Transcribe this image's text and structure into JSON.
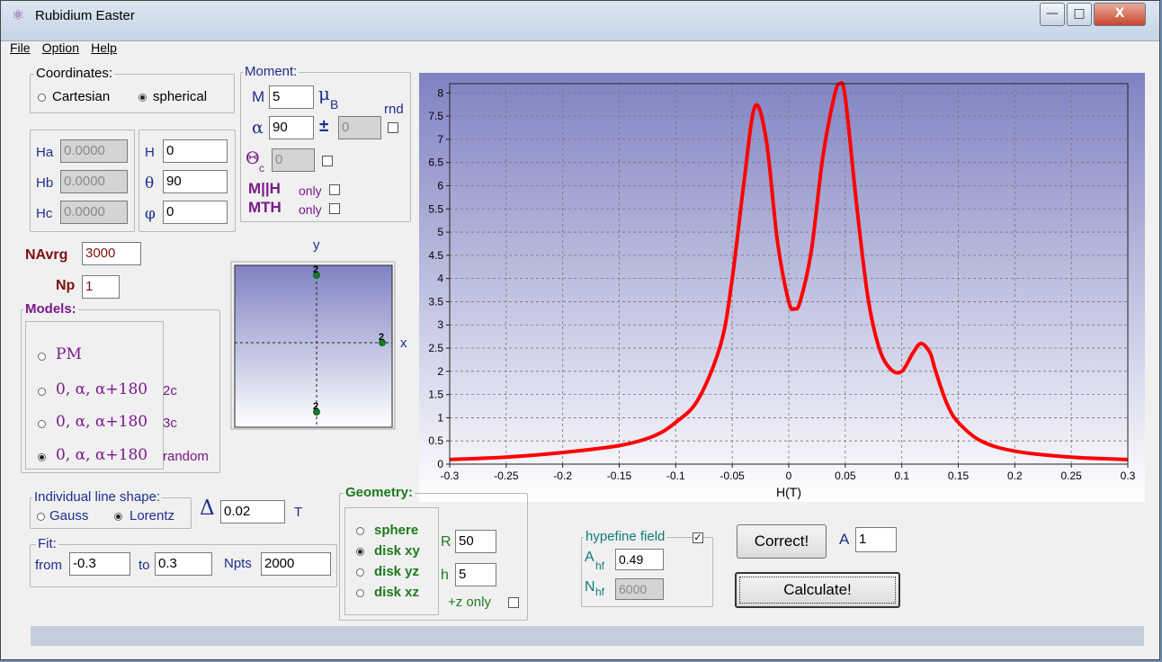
{
  "window": {
    "title": "Rubidium Easter",
    "min": "—",
    "max": "□",
    "close": "X"
  },
  "menu": [
    "File",
    "Option",
    "Help"
  ],
  "coordinates": {
    "title": "Coordinates:",
    "cartesian": "Cartesian",
    "spherical": "spherical",
    "selected": "spherical"
  },
  "cartesian_fields": {
    "ha_label": "Ha",
    "ha": "0.0000",
    "hb_label": "Hb",
    "hb": "0.0000",
    "hc_label": "Hc",
    "hc": "0.0000"
  },
  "spherical_fields": {
    "h_label": "H",
    "h": "0",
    "theta_label": "θ",
    "theta": "90",
    "phi_label": "φ",
    "phi": "0"
  },
  "moment": {
    "title": "Moment:",
    "m_label": "M",
    "m": "5",
    "mu": "μ",
    "mu_sub": "B",
    "alpha_label": "α",
    "alpha": "90",
    "pm": "±",
    "pm_value": "0",
    "rnd": "rnd",
    "theta_c": "Θ",
    "theta_c_sub": "c",
    "theta_c_value": "0",
    "mh_bold": "M||H",
    "mh_only": "only",
    "mt_bold": "MTH",
    "mt_only": "only"
  },
  "navrg": {
    "label": "NAvrg",
    "value": "3000"
  },
  "np": {
    "label": "Np",
    "value": "1"
  },
  "models": {
    "title": "Models:",
    "items": [
      {
        "main": "PM",
        "suffix": "",
        "selected": false
      },
      {
        "main": "0, α, α+180",
        "suffix": "2c",
        "selected": false
      },
      {
        "main": "0, α, α+180",
        "suffix": "3c",
        "selected": false
      },
      {
        "main": "0, α, α+180",
        "suffix": "random",
        "selected": true
      }
    ]
  },
  "xy_plot": {
    "y_label": "y",
    "x_label": "x",
    "marker": "2"
  },
  "line_shape": {
    "title": "Individual line shape:",
    "gauss": "Gauss",
    "lorentz": "Lorentz",
    "selected": "Lorentz",
    "delta": "Δ",
    "delta_value": "0.02",
    "unit": "T"
  },
  "fit": {
    "title": "Fit:",
    "from_label": "from",
    "from": "-0.3",
    "to_label": "to",
    "to": "0.3",
    "npts_label": "Npts",
    "npts": "2000"
  },
  "geometry": {
    "title": "Geometry:",
    "options": [
      "sphere",
      "disk xy",
      "disk yz",
      "disk xz"
    ],
    "selected": "disk xy",
    "r_label": "R",
    "r": "50",
    "h_label": "h",
    "h": "5",
    "zonly": "+z only"
  },
  "hyperfine": {
    "title": "hypefine field",
    "checked": true,
    "ahf_label": "A",
    "ahf_sub": "hf",
    "ahf": "0.49",
    "nhf_label": "N",
    "nhf_sub": "hf",
    "nhf": "6000"
  },
  "buttons": {
    "correct": "Correct!",
    "a_label": "A",
    "a_value": "1",
    "calculate": "Calculate!"
  },
  "chart_data": {
    "type": "line",
    "xlabel": "H(T)",
    "ylabel": "",
    "xlim": [
      -0.3,
      0.3
    ],
    "ylim": [
      0,
      8.2
    ],
    "xticks": [
      "-0.3",
      "-0.25",
      "-0.2",
      "-0.15",
      "-0.1",
      "-0.05",
      "0",
      "0.05",
      "0.1",
      "0.15",
      "0.2",
      "0.25",
      "0.3"
    ],
    "yticks": [
      "0",
      "0.5",
      "1",
      "1.5",
      "2",
      "2.5",
      "3",
      "3.5",
      "4",
      "4.5",
      "5",
      "5.5",
      "6",
      "6.5",
      "7",
      "7.5",
      "8"
    ],
    "grid": true,
    "color": "#ff0000",
    "series": [
      {
        "x": [
          -0.3,
          -0.25,
          -0.2,
          -0.15,
          -0.12,
          -0.1,
          -0.08,
          -0.06,
          -0.05,
          -0.04,
          -0.03,
          -0.02,
          -0.01,
          0.0,
          0.005,
          0.01,
          0.02,
          0.03,
          0.04,
          0.045,
          0.05,
          0.06,
          0.07,
          0.08,
          0.09,
          0.1,
          0.11,
          0.117,
          0.125,
          0.13,
          0.14,
          0.15,
          0.17,
          0.2,
          0.25,
          0.3
        ],
        "y": [
          0.1,
          0.15,
          0.25,
          0.4,
          0.6,
          0.9,
          1.4,
          2.6,
          4.0,
          6.0,
          7.7,
          7.0,
          4.8,
          3.5,
          3.35,
          3.5,
          4.6,
          6.6,
          7.9,
          8.2,
          7.9,
          5.6,
          3.6,
          2.5,
          2.05,
          2.0,
          2.4,
          2.6,
          2.4,
          2.0,
          1.3,
          0.9,
          0.5,
          0.28,
          0.15,
          0.1
        ]
      }
    ]
  }
}
